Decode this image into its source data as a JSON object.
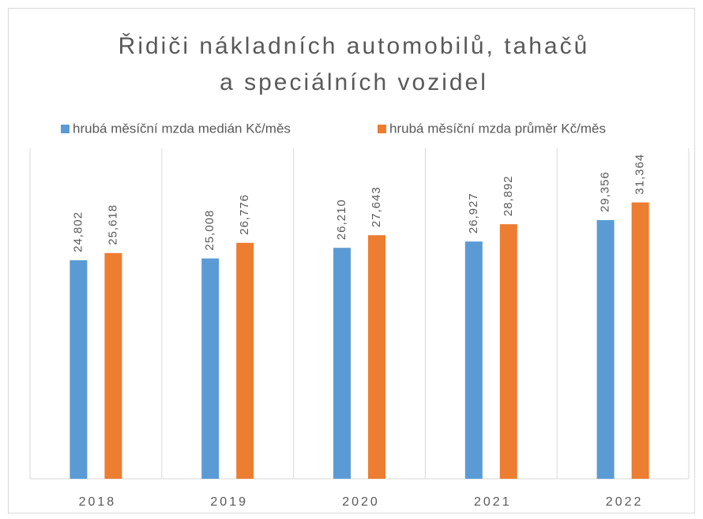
{
  "chart_data": {
    "type": "bar",
    "title": [
      "Řidiči nákladních automobilů, tahačů",
      "a speciálních vozidel"
    ],
    "categories": [
      "2018",
      "2019",
      "2020",
      "2021",
      "2022"
    ],
    "series": [
      {
        "name": "hrubá měsíční mzda medián Kč/měs",
        "color": "#5b9bd5",
        "values": [
          24802,
          25008,
          26210,
          26927,
          29356
        ],
        "value_labels": [
          "24,802",
          "25,008",
          "26,210",
          "26,927",
          "29,356"
        ]
      },
      {
        "name": "hrubá měsíční mzda průměr Kč/měs",
        "color": "#ed7d31",
        "values": [
          25618,
          26776,
          27643,
          28892,
          31364
        ],
        "value_labels": [
          "25,618",
          "26,776",
          "27,643",
          "28,892",
          "31,364"
        ]
      }
    ],
    "ylim": [
      0,
      35000
    ],
    "legend": "top"
  }
}
